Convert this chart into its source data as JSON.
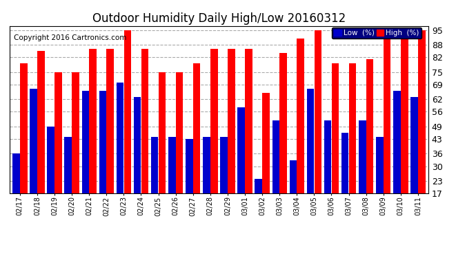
{
  "title": "Outdoor Humidity Daily High/Low 20160312",
  "copyright": "Copyright 2016 Cartronics.com",
  "categories": [
    "02/17",
    "02/18",
    "02/19",
    "02/20",
    "02/21",
    "02/22",
    "02/23",
    "02/24",
    "02/25",
    "02/26",
    "02/27",
    "02/28",
    "02/29",
    "03/01",
    "03/02",
    "03/03",
    "03/04",
    "03/05",
    "03/06",
    "03/07",
    "03/08",
    "03/09",
    "03/10",
    "03/11"
  ],
  "high_values": [
    79,
    85,
    75,
    75,
    86,
    86,
    95,
    86,
    75,
    75,
    79,
    86,
    86,
    86,
    65,
    84,
    91,
    95,
    79,
    79,
    81,
    95,
    91,
    95
  ],
  "low_values": [
    36,
    67,
    49,
    44,
    66,
    66,
    70,
    63,
    44,
    44,
    43,
    44,
    44,
    58,
    24,
    52,
    33,
    67,
    52,
    46,
    52,
    44,
    66,
    63
  ],
  "high_color": "#ff0000",
  "low_color": "#0000cc",
  "bg_color": "#ffffff",
  "plot_bg_color": "#ffffff",
  "grid_color": "#aaaaaa",
  "yticks": [
    17,
    23,
    30,
    36,
    43,
    49,
    56,
    62,
    69,
    75,
    82,
    88,
    95
  ],
  "ylim": [
    17,
    97
  ],
  "ymin": 17,
  "title_fontsize": 12,
  "copyright_fontsize": 7.5,
  "legend_low_label": "Low  (%)",
  "legend_high_label": "High  (%)"
}
